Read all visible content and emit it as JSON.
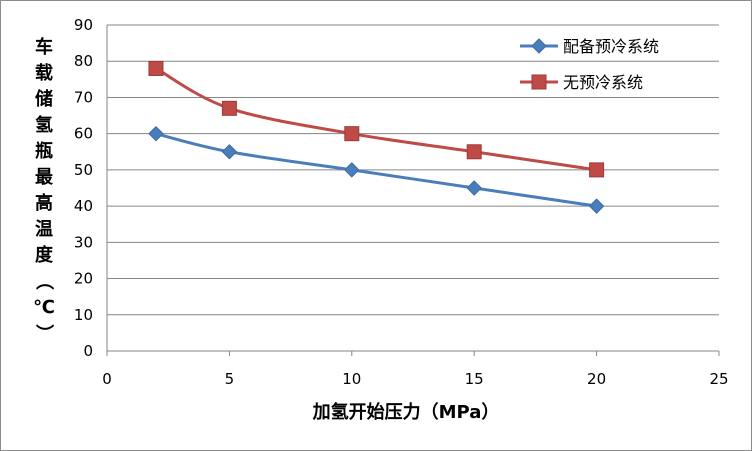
{
  "chart_data": {
    "type": "scatter",
    "title": "",
    "xlabel": "加氢开始压力（MPa）",
    "ylabel": "车载储氢瓶最高温度（℃）",
    "xlim": [
      0,
      25
    ],
    "ylim": [
      0,
      90
    ],
    "xticks": [
      "0",
      "5",
      "10",
      "15",
      "20",
      "25"
    ],
    "yticks": [
      "0",
      "10",
      "20",
      "30",
      "40",
      "50",
      "60",
      "70",
      "80",
      "90"
    ],
    "grid": "horizontal",
    "legend_position": "top-right",
    "series": [
      {
        "name": "配备预冷系统",
        "color": "#4a7ebb",
        "marker": "diamond",
        "x": [
          2,
          5,
          10,
          15,
          20
        ],
        "y": [
          60,
          55,
          50,
          45,
          40
        ]
      },
      {
        "name": "无预冷系统",
        "color": "#be4b48",
        "marker": "square",
        "x": [
          2,
          5,
          10,
          15,
          20
        ],
        "y": [
          78,
          67,
          60,
          55,
          50
        ]
      }
    ]
  }
}
